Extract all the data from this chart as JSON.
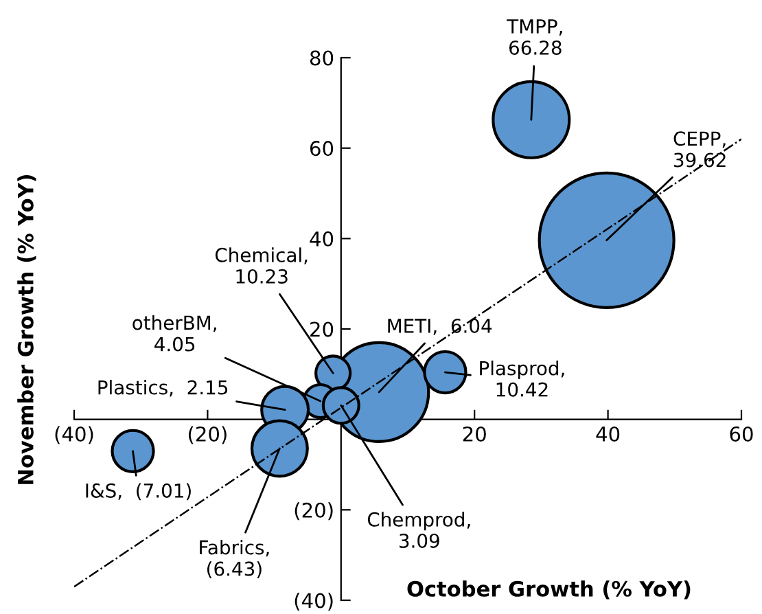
{
  "chart_data": {
    "type": "bubble",
    "xlabel": "October Growth (% YoY)",
    "ylabel": "November Growth (% YoY)",
    "xlim": [
      -40,
      60
    ],
    "ylim": [
      -40,
      80
    ],
    "xticks": [
      {
        "value": -40,
        "label": "(40)"
      },
      {
        "value": -20,
        "label": "(20)"
      },
      {
        "value": 0,
        "label": null
      },
      20,
      40,
      60
    ],
    "yticks": [
      {
        "value": -40,
        "label": "(40)"
      },
      {
        "value": -20,
        "label": "(20)"
      },
      {
        "value": 0,
        "label": null
      },
      20,
      40,
      60,
      80
    ],
    "grid": false,
    "series": [
      {
        "color": "#5b96d0",
        "x": [
          28.5,
          39.8,
          5.7,
          15.6,
          -1.2,
          -3.1,
          -8.4,
          0.0,
          -9.2,
          -31.2
        ],
        "values": [
          66.28,
          39.62,
          6.04,
          10.42,
          10.23,
          4.05,
          2.15,
          3.09,
          -6.43,
          -7.01
        ],
        "sizes": [
          0.32,
          1,
          0.54,
          0.094,
          0.065,
          0.06,
          0.12,
          0.07,
          0.17,
          0.094
        ]
      },
      {
        "type": "line",
        "color": "#000000",
        "line_style": "dashdot",
        "marker": "none",
        "x": [
          -40,
          60
        ],
        "values": [
          -37,
          62
        ]
      }
    ],
    "annotations": [
      {
        "text": "TMPP,\n66.28",
        "x": 28.5,
        "y": 66.28
      },
      {
        "text": "CEPP,\n39.62",
        "x": 39.8,
        "y": 39.62
      },
      {
        "text": "METI,  6.04",
        "x": 5.7,
        "y": 6.04
      },
      {
        "text": "Plasprod,\n10.42",
        "x": 15.6,
        "y": 10.42
      },
      {
        "text": "Chemical,\n10.23",
        "x": -1.2,
        "y": 10.23
      },
      {
        "text": "otherBM,\n4.05",
        "x": -3.1,
        "y": 4.05
      },
      {
        "text": "Plastics,  2.15",
        "x": -8.4,
        "y": 2.15
      },
      {
        "text": "Chemprod,\n3.09",
        "x": 0.0,
        "y": 3.09
      },
      {
        "text": "Fabrics,\n(6.43)",
        "x": -9.2,
        "y": -6.43
      },
      {
        "text": "I&S,  (7.01)",
        "x": -31.2,
        "y": -7.01
      }
    ]
  }
}
